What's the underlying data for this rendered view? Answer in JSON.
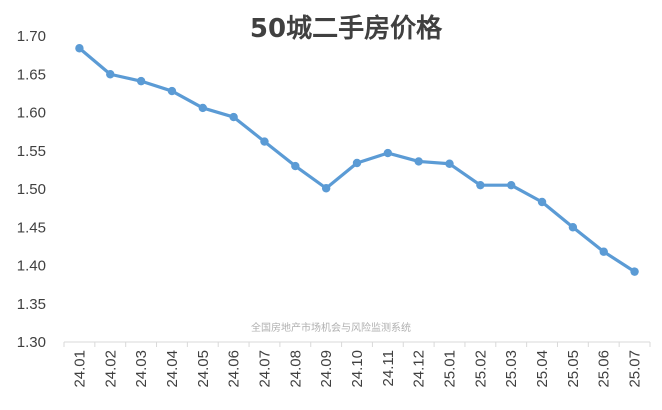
{
  "chart_data": {
    "type": "line",
    "title": "50城二手房价格",
    "xlabel": "",
    "ylabel": "",
    "categories": [
      "24.01",
      "24.02",
      "24.03",
      "24.04",
      "24.05",
      "24.06",
      "24.07",
      "24.08",
      "24.09",
      "24.10",
      "24.11",
      "24.12",
      "25.01",
      "25.02",
      "25.03",
      "25.04",
      "25.05",
      "25.06",
      "25.07"
    ],
    "series": [
      {
        "values": [
          1.684,
          1.65,
          1.641,
          1.628,
          1.606,
          1.594,
          1.562,
          1.53,
          1.501,
          1.534,
          1.547,
          1.536,
          1.533,
          1.505,
          1.505,
          1.483,
          1.45,
          1.418,
          1.392
        ]
      }
    ],
    "ylim": [
      1.3,
      1.7
    ],
    "yticks": [
      "1.30",
      "1.35",
      "1.40",
      "1.45",
      "1.50",
      "1.55",
      "1.60",
      "1.65",
      "1.70"
    ],
    "grid": false,
    "legend": "none",
    "line_color": "#5B9BD5",
    "axis_color": "#d9d9d9",
    "watermark": "全国房地产市场机会与风险监测系统"
  }
}
